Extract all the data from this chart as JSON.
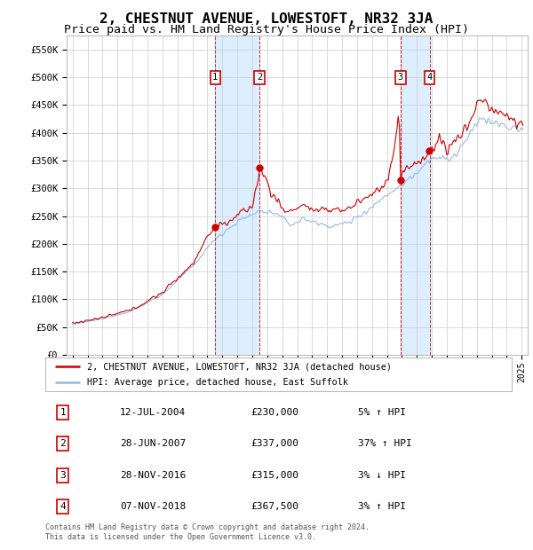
{
  "title": "2, CHESTNUT AVENUE, LOWESTOFT, NR32 3JA",
  "subtitle": "Price paid vs. HM Land Registry's House Price Index (HPI)",
  "title_fontsize": 11.5,
  "subtitle_fontsize": 9.5,
  "ylim": [
    0,
    575000
  ],
  "yticks": [
    0,
    50000,
    100000,
    150000,
    200000,
    250000,
    300000,
    350000,
    400000,
    450000,
    500000,
    550000
  ],
  "ytick_labels": [
    "£0",
    "£50K",
    "£100K",
    "£150K",
    "£200K",
    "£250K",
    "£300K",
    "£350K",
    "£400K",
    "£450K",
    "£500K",
    "£550K"
  ],
  "transactions": [
    {
      "label": "1",
      "year": 2004.53,
      "price": 230000,
      "pct": "5%",
      "dir": "↑",
      "date": "12-JUL-2004"
    },
    {
      "label": "2",
      "year": 2007.49,
      "price": 337000,
      "pct": "37%",
      "dir": "↑",
      "date": "28-JUN-2007"
    },
    {
      "label": "3",
      "year": 2016.91,
      "price": 315000,
      "pct": "3%",
      "dir": "↓",
      "date": "28-NOV-2016"
    },
    {
      "label": "4",
      "year": 2018.85,
      "price": 367500,
      "pct": "3%",
      "dir": "↑",
      "date": "07-NOV-2018"
    }
  ],
  "legend_line1": "2, CHESTNUT AVENUE, LOWESTOFT, NR32 3JA (detached house)",
  "legend_line2": "HPI: Average price, detached house, East Suffolk",
  "footer": "Contains HM Land Registry data © Crown copyright and database right 2024.\nThis data is licensed under the Open Government Licence v3.0.",
  "line_color": "#cc0000",
  "hpi_color": "#99bbdd",
  "background_color": "#ffffff",
  "grid_color": "#cccccc",
  "span_color": "#ddeeff"
}
